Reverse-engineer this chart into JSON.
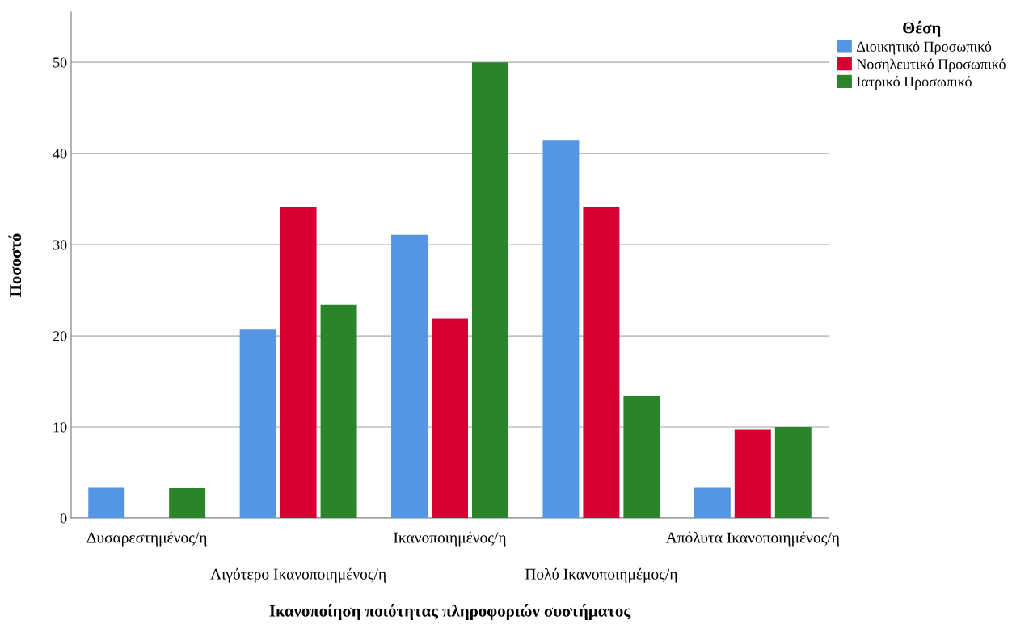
{
  "chart_data": {
    "type": "bar",
    "xlabel": "Ικανοποίηση ποιότητας πληροφοριών συστήματος",
    "ylabel": "Ποσοστό",
    "legend_title": "Θέση",
    "categories": [
      "Δυσαρεστημένος/η",
      "Λιγότερο Ικανοποιημένος/η",
      "Ικανοποιημένος/η",
      "Πολύ Ικανοποιημέμος/η",
      "Απόλυτα Ικανοποιημένος/η"
    ],
    "series": [
      {
        "name": "Διοικητικό Προσωπικό",
        "color": "#5596e4",
        "values": [
          3.4,
          20.7,
          31.1,
          41.4,
          3.4
        ]
      },
      {
        "name": "Νοσηλευτικό Προσωπικό",
        "color": "#d60032",
        "values": [
          0,
          34.1,
          21.9,
          34.1,
          9.7
        ]
      },
      {
        "name": "Ιατρικό Προσωπικό",
        "color": "#2a8429",
        "values": [
          3.3,
          23.4,
          50.0,
          13.4,
          10.0
        ]
      }
    ],
    "ylim": [
      0,
      55.5
    ],
    "yticks": [
      0,
      10,
      20,
      30,
      40,
      50
    ],
    "grid": "y",
    "legend": "top right"
  }
}
